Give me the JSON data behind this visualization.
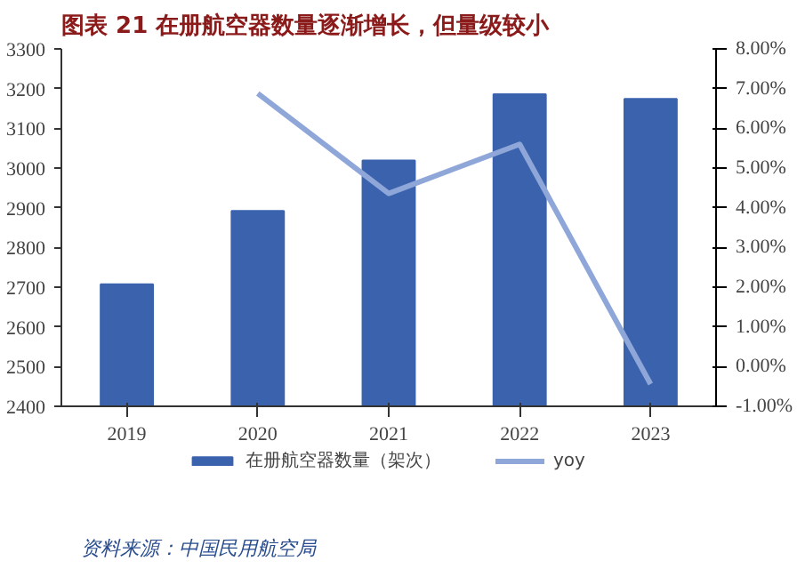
{
  "chart_data": {
    "type": "bar",
    "title": "图表 21   在册航空器数量逐渐增长，但量级较小",
    "categories": [
      "2019",
      "2020",
      "2021",
      "2022",
      "2023"
    ],
    "series": [
      {
        "name": "在册航空器数量（架次）",
        "color": "#3a62ad",
        "values": [
          2707,
          2892,
          3019,
          3186,
          3174
        ]
      },
      {
        "name": "yoy",
        "type": "line",
        "axis": "y2",
        "color": "#8fa6d8",
        "values": [
          null,
          6.88,
          4.36,
          5.6,
          -0.44
        ]
      }
    ],
    "ylim": [
      2400,
      3300
    ],
    "yticks": [
      2400,
      2500,
      2600,
      2700,
      2800,
      2900,
      3000,
      3100,
      3200,
      3300
    ],
    "y2lim": [
      -1,
      8
    ],
    "y2ticks": [
      {
        "value": -1,
        "label": "-1.00%"
      },
      {
        "value": 0,
        "label": "0.00%"
      },
      {
        "value": 1,
        "label": "1.00%"
      },
      {
        "value": 2,
        "label": "2.00%"
      },
      {
        "value": 3,
        "label": "3.00%"
      },
      {
        "value": 4,
        "label": "4.00%"
      },
      {
        "value": 5,
        "label": "5.00%"
      },
      {
        "value": 6,
        "label": "6.00%"
      },
      {
        "value": 7,
        "label": "7.00%"
      },
      {
        "value": 8,
        "label": "8.00%"
      }
    ],
    "grid": false,
    "legend": "bottom",
    "annotations": [
      "资料来源：中国民用航空局"
    ]
  }
}
